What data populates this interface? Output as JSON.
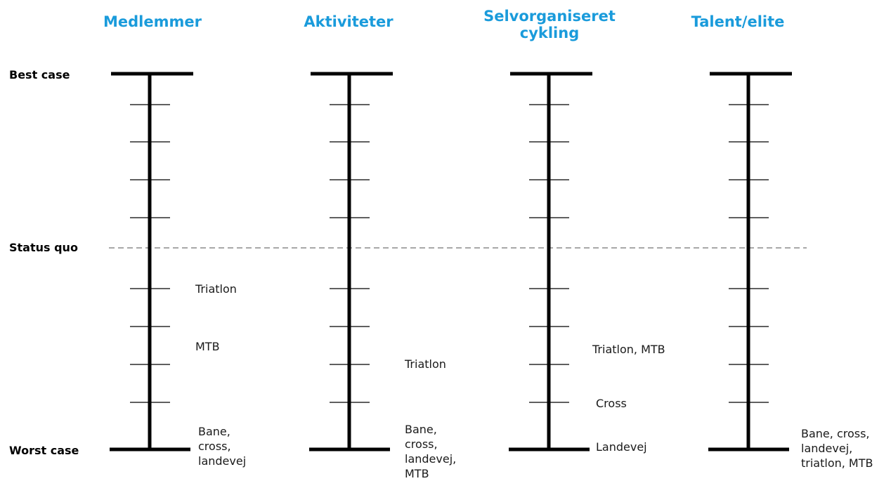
{
  "rows": {
    "best": "Best case",
    "status": "Status quo",
    "worst": "Worst case"
  },
  "columns": [
    {
      "title": "Medlemmer",
      "labels": [
        {
          "text": "Triatlon"
        },
        {
          "text": "MTB"
        },
        {
          "text": "Bane,\ncross,\nlandevej"
        }
      ]
    },
    {
      "title": "Aktiviteter",
      "labels": [
        {
          "text": "Triatlon"
        },
        {
          "text": "Bane,\ncross,\nlandevej,\nMTB"
        }
      ]
    },
    {
      "title": "Selvorganiseret\ncykling",
      "labels": [
        {
          "text": "Triatlon, MTB"
        },
        {
          "text": "Cross"
        },
        {
          "text": "Landevej"
        }
      ]
    },
    {
      "title": "Talent/elite",
      "labels": [
        {
          "text": "Bane, cross,\nlandevej,\ntriatlon, MTB"
        }
      ]
    }
  ]
}
